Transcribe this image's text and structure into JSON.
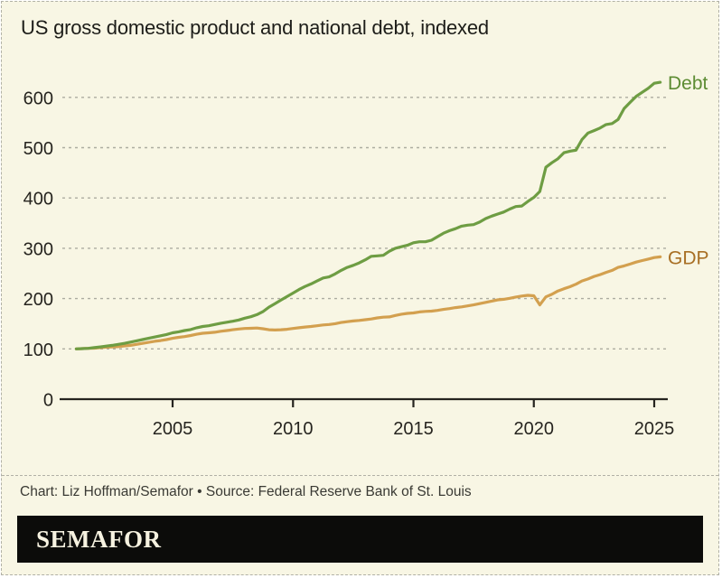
{
  "title": "US gross domestic product and national debt, indexed",
  "credit": "Chart: Liz Hoffman/Semafor • Source: Federal Reserve Bank of St. Louis",
  "logo": "SEMAFOR",
  "colors": {
    "background": "#f8f6e4",
    "grid": "#acaca0",
    "axis": "#26241f",
    "logo_bar": "#0c0c0a",
    "logo_text": "#f6f2e0"
  },
  "chart_data": {
    "type": "line",
    "title": "US gross domestic product and national debt, indexed",
    "xlabel": "",
    "ylabel": "",
    "x_ticks": [
      2005,
      2010,
      2015,
      2020,
      2025
    ],
    "y_ticks": [
      0,
      100,
      200,
      300,
      400,
      500,
      600
    ],
    "x_range": [
      2000.3,
      2026
    ],
    "y_range": [
      0,
      680
    ],
    "grid": "horizontal-dashed",
    "legend_position": "right-end-of-line",
    "series": [
      {
        "name": "Debt",
        "color": "#6e9d43",
        "label_color": "#5d8c33",
        "x_start": 2001,
        "x_step": 0.25,
        "values": [
          100,
          100.5,
          101,
          102.5,
          104,
          105.5,
          107,
          109,
          111,
          113.5,
          116,
          118.5,
          121,
          123.5,
          126,
          128.5,
          132,
          134,
          136.5,
          138.5,
          142,
          144.5,
          146,
          148.5,
          151,
          153,
          155,
          157.5,
          161,
          164,
          168,
          174,
          183,
          190,
          197,
          204,
          211,
          218,
          224,
          229,
          235,
          241,
          243,
          249,
          256,
          262,
          266,
          271,
          277,
          284,
          285,
          286,
          294,
          300,
          303,
          306,
          311,
          313,
          313,
          316,
          323,
          330,
          335,
          339,
          344,
          346,
          347,
          352,
          359,
          364,
          368,
          372,
          378,
          383,
          384,
          393,
          401,
          413,
          461,
          470,
          478,
          490,
          493,
          495,
          516,
          529,
          534,
          539,
          546,
          548,
          556,
          578,
          590,
          602,
          610,
          618,
          628,
          630
        ]
      },
      {
        "name": "GDP",
        "color": "#d3a04f",
        "label_color": "#a86f24",
        "x_start": 2001,
        "x_step": 0.25,
        "values": [
          100,
          100.5,
          101,
          101.5,
          102.5,
          103.5,
          104,
          104.5,
          106,
          107,
          109,
          111,
          113,
          115,
          116.5,
          118.5,
          121,
          123,
          124.5,
          126.5,
          129,
          131,
          132,
          133,
          135,
          136.5,
          138,
          139.5,
          140.5,
          141,
          141.5,
          140,
          138,
          137.5,
          138,
          139,
          140.5,
          142,
          143.5,
          144.5,
          146,
          147.5,
          148.5,
          150,
          152.5,
          154,
          155.5,
          156.5,
          158,
          159.5,
          161.5,
          163,
          163.5,
          166.5,
          169,
          170.5,
          171.5,
          173.5,
          174.5,
          175,
          176.5,
          178.5,
          180,
          182,
          183.5,
          185.5,
          187.5,
          190,
          192.5,
          195,
          197.5,
          198.5,
          200.5,
          203,
          205,
          206.5,
          205.5,
          187.5,
          203.5,
          208.5,
          215,
          219.5,
          223.5,
          228.5,
          235,
          239,
          244,
          247.5,
          252,
          256,
          262,
          265,
          268.5,
          272.5,
          275.5,
          278.5,
          281.5,
          283
        ]
      }
    ]
  }
}
